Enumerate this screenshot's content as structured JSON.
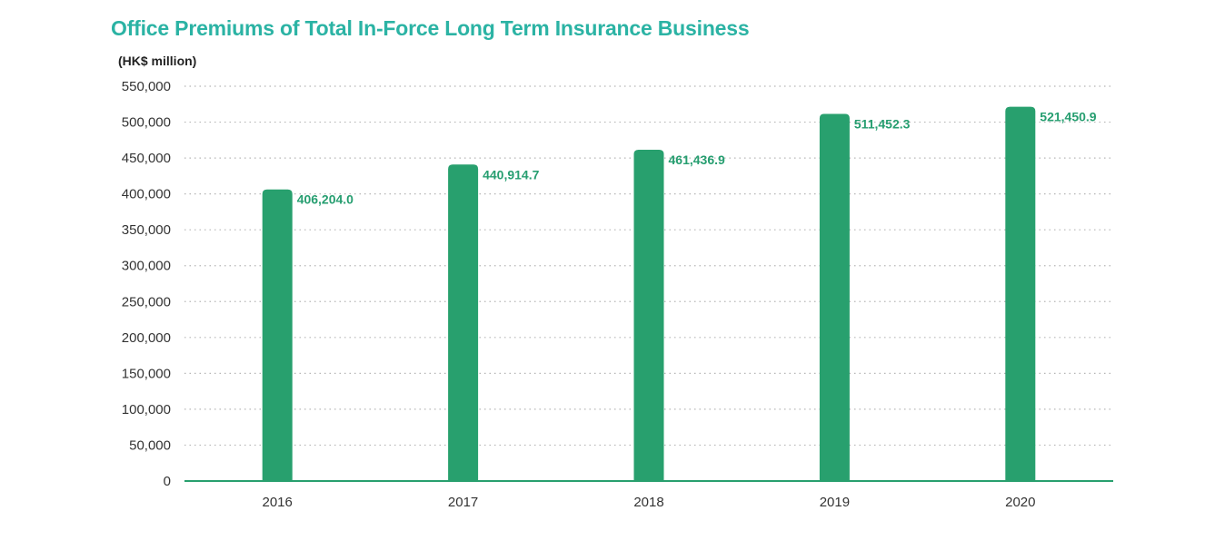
{
  "chart_data": {
    "type": "bar",
    "title": "Office Premiums of Total In-Force Long Term Insurance Business",
    "ylabel": "(HK$ million)",
    "xlabel": "",
    "categories": [
      "2016",
      "2017",
      "2018",
      "2019",
      "2020"
    ],
    "values": [
      406204.0,
      440914.7,
      461436.9,
      511452.3,
      521450.9
    ],
    "value_labels": [
      "406,204.0",
      "440,914.7",
      "461,436.9",
      "511,452.3",
      "521,450.9"
    ],
    "ylim": [
      0,
      550000
    ],
    "yticks": [
      0,
      50000,
      100000,
      150000,
      200000,
      250000,
      300000,
      350000,
      400000,
      450000,
      500000,
      550000
    ],
    "ytick_labels": [
      "0",
      "50,000",
      "100,000",
      "150,000",
      "200,000",
      "250,000",
      "300,000",
      "350,000",
      "400,000",
      "450,000",
      "500,000",
      "550,000"
    ],
    "grid": true,
    "legend": "none",
    "colors": {
      "bar": "#28a06e",
      "title": "#2bb3a4",
      "value_label": "#269e70",
      "grid": "#b5b5b5",
      "axis": "#28a06e"
    }
  }
}
